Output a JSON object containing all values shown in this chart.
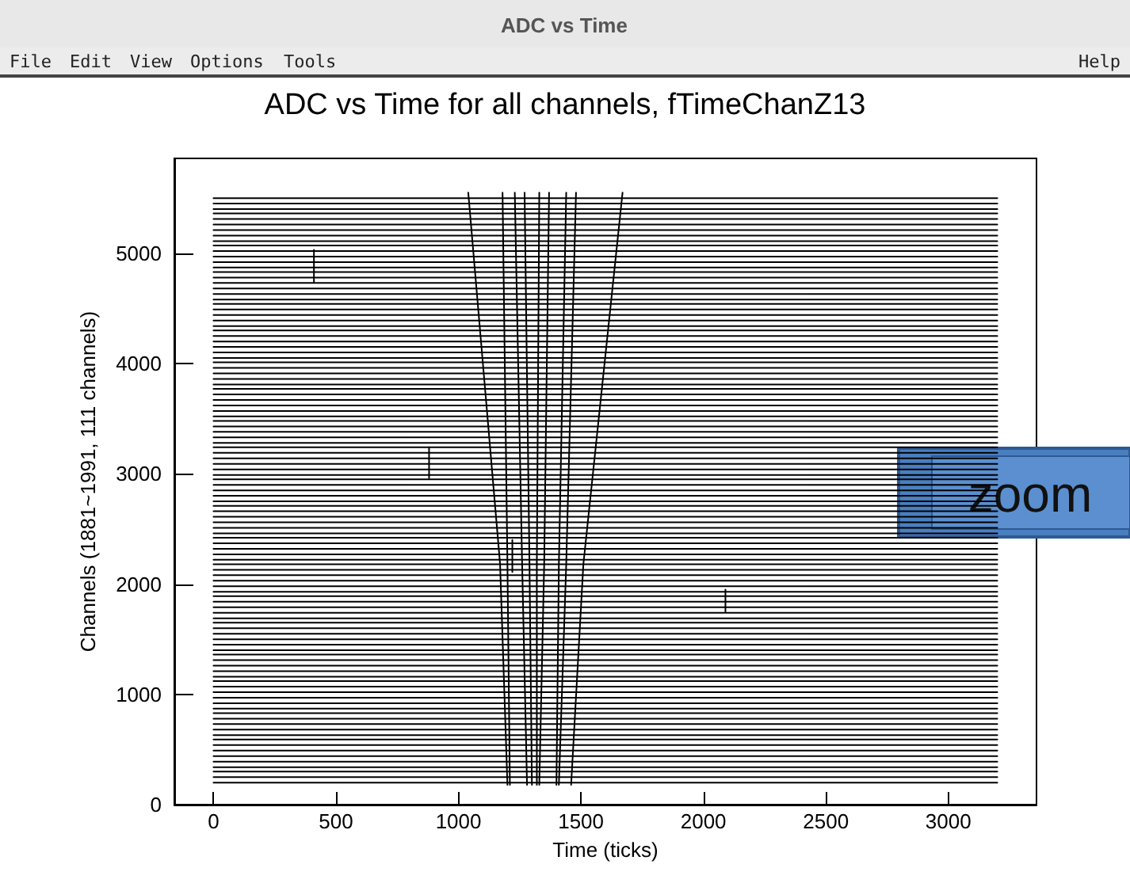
{
  "chart_data": {
    "type": "line",
    "title": "ADC vs Time for all channels, fTimeChanZ13",
    "xlabel": "Time (ticks)",
    "ylabel": "Channels (1881~1991, 111 channels)",
    "annotations": [
      "ADC vs Time",
      "File",
      "Edit",
      "View",
      "Options",
      "Tools",
      "Help",
      "zoom"
    ],
    "x": [
      0,
      3200
    ],
    "xlim": [
      -160,
      3360
    ],
    "xticks": [
      0,
      500,
      1000,
      1500,
      2000,
      2500,
      3000
    ],
    "ylim": [
      0,
      5860
    ],
    "yticks": [
      0,
      1000,
      2000,
      3000,
      4000,
      5000
    ],
    "grid": false,
    "legend": false,
    "marker": "none",
    "line_style": "solid",
    "series": [
      {
        "color": "#000000",
        "values": [
          200,
          200
        ]
      },
      {
        "color": "#000000",
        "values": [
          250,
          250
        ]
      },
      {
        "color": "#000000",
        "values": [
          300,
          300
        ]
      },
      {
        "color": "#000000",
        "values": [
          340,
          340
        ]
      },
      {
        "color": "#000000",
        "values": [
          390,
          390
        ]
      },
      {
        "color": "#000000",
        "values": [
          440,
          440
        ]
      },
      {
        "color": "#000000",
        "values": [
          490,
          490
        ]
      },
      {
        "color": "#000000",
        "values": [
          540,
          540
        ]
      },
      {
        "color": "#000000",
        "values": [
          590,
          590
        ]
      },
      {
        "color": "#000000",
        "values": [
          630,
          630
        ]
      },
      {
        "color": "#000000",
        "values": [
          680,
          680
        ]
      },
      {
        "color": "#000000",
        "values": [
          730,
          730
        ]
      },
      {
        "color": "#000000",
        "values": [
          780,
          780
        ]
      },
      {
        "color": "#000000",
        "values": [
          830,
          830
        ]
      },
      {
        "color": "#000000",
        "values": [
          870,
          870
        ]
      },
      {
        "color": "#000000",
        "values": [
          920,
          920
        ]
      },
      {
        "color": "#000000",
        "values": [
          970,
          970
        ]
      },
      {
        "color": "#000000",
        "values": [
          1020,
          1020
        ]
      },
      {
        "color": "#000000",
        "values": [
          1070,
          1070
        ]
      },
      {
        "color": "#000000",
        "values": [
          1120,
          1120
        ]
      },
      {
        "color": "#000000",
        "values": [
          1160,
          1160
        ]
      },
      {
        "color": "#000000",
        "values": [
          1210,
          1210
        ]
      },
      {
        "color": "#000000",
        "values": [
          1260,
          1260
        ]
      },
      {
        "color": "#000000",
        "values": [
          1310,
          1310
        ]
      },
      {
        "color": "#000000",
        "values": [
          1360,
          1360
        ]
      },
      {
        "color": "#000000",
        "values": [
          1400,
          1400
        ]
      },
      {
        "color": "#000000",
        "values": [
          1450,
          1450
        ]
      },
      {
        "color": "#000000",
        "values": [
          1500,
          1500
        ]
      },
      {
        "color": "#000000",
        "values": [
          1550,
          1550
        ]
      },
      {
        "color": "#000000",
        "values": [
          1600,
          1600
        ]
      },
      {
        "color": "#000000",
        "values": [
          1650,
          1650
        ]
      },
      {
        "color": "#000000",
        "values": [
          1690,
          1690
        ]
      },
      {
        "color": "#000000",
        "values": [
          1740,
          1740
        ]
      },
      {
        "color": "#000000",
        "values": [
          1790,
          1790
        ]
      },
      {
        "color": "#000000",
        "values": [
          1840,
          1840
        ]
      },
      {
        "color": "#000000",
        "values": [
          1890,
          1890
        ]
      },
      {
        "color": "#000000",
        "values": [
          1930,
          1930
        ]
      },
      {
        "color": "#000000",
        "values": [
          1980,
          1980
        ]
      },
      {
        "color": "#000000",
        "values": [
          2030,
          2030
        ]
      },
      {
        "color": "#000000",
        "values": [
          2080,
          2080
        ]
      },
      {
        "color": "#000000",
        "values": [
          2130,
          2130
        ]
      },
      {
        "color": "#000000",
        "values": [
          2180,
          2180
        ]
      },
      {
        "color": "#000000",
        "values": [
          2220,
          2220
        ]
      },
      {
        "color": "#000000",
        "values": [
          2270,
          2270
        ]
      },
      {
        "color": "#000000",
        "values": [
          2320,
          2320
        ]
      },
      {
        "color": "#000000",
        "values": [
          2370,
          2370
        ]
      },
      {
        "color": "#000000",
        "values": [
          2420,
          2420
        ]
      },
      {
        "color": "#000000",
        "values": [
          2460,
          2460
        ]
      },
      {
        "color": "#000000",
        "values": [
          2510,
          2510
        ]
      },
      {
        "color": "#000000",
        "values": [
          2560,
          2560
        ]
      },
      {
        "color": "#000000",
        "values": [
          2610,
          2610
        ]
      },
      {
        "color": "#000000",
        "values": [
          2660,
          2660
        ]
      },
      {
        "color": "#000000",
        "values": [
          2710,
          2710
        ]
      },
      {
        "color": "#000000",
        "values": [
          2750,
          2750
        ]
      },
      {
        "color": "#000000",
        "values": [
          2800,
          2800
        ]
      },
      {
        "color": "#000000",
        "values": [
          2850,
          2850
        ]
      },
      {
        "color": "#000000",
        "values": [
          2900,
          2900
        ]
      },
      {
        "color": "#000000",
        "values": [
          2950,
          2950
        ]
      },
      {
        "color": "#000000",
        "values": [
          2990,
          2990
        ]
      },
      {
        "color": "#000000",
        "values": [
          3040,
          3040
        ]
      },
      {
        "color": "#000000",
        "values": [
          3090,
          3090
        ]
      },
      {
        "color": "#000000",
        "values": [
          3140,
          3140
        ]
      },
      {
        "color": "#000000",
        "values": [
          3190,
          3190
        ]
      },
      {
        "color": "#000000",
        "values": [
          3240,
          3240
        ]
      },
      {
        "color": "#000000",
        "values": [
          3280,
          3280
        ]
      },
      {
        "color": "#000000",
        "values": [
          3330,
          3330
        ]
      },
      {
        "color": "#000000",
        "values": [
          3380,
          3380
        ]
      },
      {
        "color": "#000000",
        "values": [
          3430,
          3430
        ]
      },
      {
        "color": "#000000",
        "values": [
          3480,
          3480
        ]
      },
      {
        "color": "#000000",
        "values": [
          3520,
          3520
        ]
      },
      {
        "color": "#000000",
        "values": [
          3570,
          3570
        ]
      },
      {
        "color": "#000000",
        "values": [
          3620,
          3620
        ]
      },
      {
        "color": "#000000",
        "values": [
          3670,
          3670
        ]
      },
      {
        "color": "#000000",
        "values": [
          3720,
          3720
        ]
      },
      {
        "color": "#000000",
        "values": [
          3770,
          3770
        ]
      },
      {
        "color": "#000000",
        "values": [
          3810,
          3810
        ]
      },
      {
        "color": "#000000",
        "values": [
          3860,
          3860
        ]
      },
      {
        "color": "#000000",
        "values": [
          3910,
          3910
        ]
      },
      {
        "color": "#000000",
        "values": [
          3960,
          3960
        ]
      },
      {
        "color": "#000000",
        "values": [
          4010,
          4010
        ]
      },
      {
        "color": "#000000",
        "values": [
          4050,
          4050
        ]
      },
      {
        "color": "#000000",
        "values": [
          4100,
          4100
        ]
      },
      {
        "color": "#000000",
        "values": [
          4150,
          4150
        ]
      },
      {
        "color": "#000000",
        "values": [
          4200,
          4200
        ]
      },
      {
        "color": "#000000",
        "values": [
          4250,
          4250
        ]
      },
      {
        "color": "#000000",
        "values": [
          4300,
          4300
        ]
      },
      {
        "color": "#000000",
        "values": [
          4340,
          4340
        ]
      },
      {
        "color": "#000000",
        "values": [
          4390,
          4390
        ]
      },
      {
        "color": "#000000",
        "values": [
          4440,
          4440
        ]
      },
      {
        "color": "#000000",
        "values": [
          4490,
          4490
        ]
      },
      {
        "color": "#000000",
        "values": [
          4540,
          4540
        ]
      },
      {
        "color": "#000000",
        "values": [
          4580,
          4580
        ]
      },
      {
        "color": "#000000",
        "values": [
          4630,
          4630
        ]
      },
      {
        "color": "#000000",
        "values": [
          4680,
          4680
        ]
      },
      {
        "color": "#000000",
        "values": [
          4730,
          4730
        ]
      },
      {
        "color": "#000000",
        "values": [
          4780,
          4780
        ]
      },
      {
        "color": "#000000",
        "values": [
          4830,
          4830
        ]
      },
      {
        "color": "#000000",
        "values": [
          4870,
          4870
        ]
      },
      {
        "color": "#000000",
        "values": [
          4920,
          4920
        ]
      },
      {
        "color": "#000000",
        "values": [
          4970,
          4970
        ]
      },
      {
        "color": "#000000",
        "values": [
          5020,
          5020
        ]
      },
      {
        "color": "#000000",
        "values": [
          5070,
          5070
        ]
      },
      {
        "color": "#000000",
        "values": [
          5110,
          5110
        ]
      },
      {
        "color": "#000000",
        "values": [
          5160,
          5160
        ]
      },
      {
        "color": "#000000",
        "values": [
          5210,
          5210
        ]
      },
      {
        "color": "#000000",
        "values": [
          5260,
          5260
        ]
      },
      {
        "color": "#000000",
        "values": [
          5310,
          5310
        ]
      },
      {
        "color": "#000000",
        "values": [
          5360,
          5360
        ]
      },
      {
        "color": "#000000",
        "values": [
          5400,
          5400
        ]
      },
      {
        "color": "#000000",
        "values": [
          5450,
          5450
        ]
      },
      {
        "color": "#000000",
        "values": [
          5500,
          5500
        ]
      },
      {
        "color": "#000000",
        "x": [
          1040,
          1170,
          1200
        ],
        "values": [
          5550,
          2180,
          180
        ]
      },
      {
        "color": "#000000",
        "x": [
          1180,
          1200,
          1210
        ],
        "values": [
          5550,
          2180,
          180
        ]
      },
      {
        "color": "#000000",
        "x": [
          1230,
          1260,
          1280
        ],
        "values": [
          5550,
          2180,
          180
        ]
      },
      {
        "color": "#000000",
        "x": [
          1270,
          1290,
          1300
        ],
        "values": [
          5550,
          2180,
          180
        ]
      },
      {
        "color": "#000000",
        "x": [
          1330,
          1320,
          1320
        ],
        "values": [
          5550,
          2180,
          180
        ]
      },
      {
        "color": "#000000",
        "x": [
          1370,
          1350,
          1330
        ],
        "values": [
          5550,
          2180,
          180
        ]
      },
      {
        "color": "#000000",
        "x": [
          1440,
          1410,
          1400
        ],
        "values": [
          5550,
          2180,
          180
        ]
      },
      {
        "color": "#000000",
        "x": [
          1480,
          1440,
          1410
        ],
        "values": [
          5550,
          2180,
          180
        ]
      },
      {
        "color": "#000000",
        "x": [
          1670,
          1510,
          1460
        ],
        "values": [
          5550,
          2180,
          180
        ]
      },
      {
        "color": "#000000",
        "x": [
          410,
          410
        ],
        "values": [
          4740,
          5030
        ]
      },
      {
        "color": "#000000",
        "x": [
          880,
          880
        ],
        "values": [
          2960,
          3240
        ]
      },
      {
        "color": "#000000",
        "x": [
          1220,
          1220
        ],
        "values": [
          2110,
          2400
        ]
      },
      {
        "color": "#000000",
        "x": [
          2090,
          2090
        ],
        "values": [
          1750,
          1950
        ]
      }
    ]
  }
}
